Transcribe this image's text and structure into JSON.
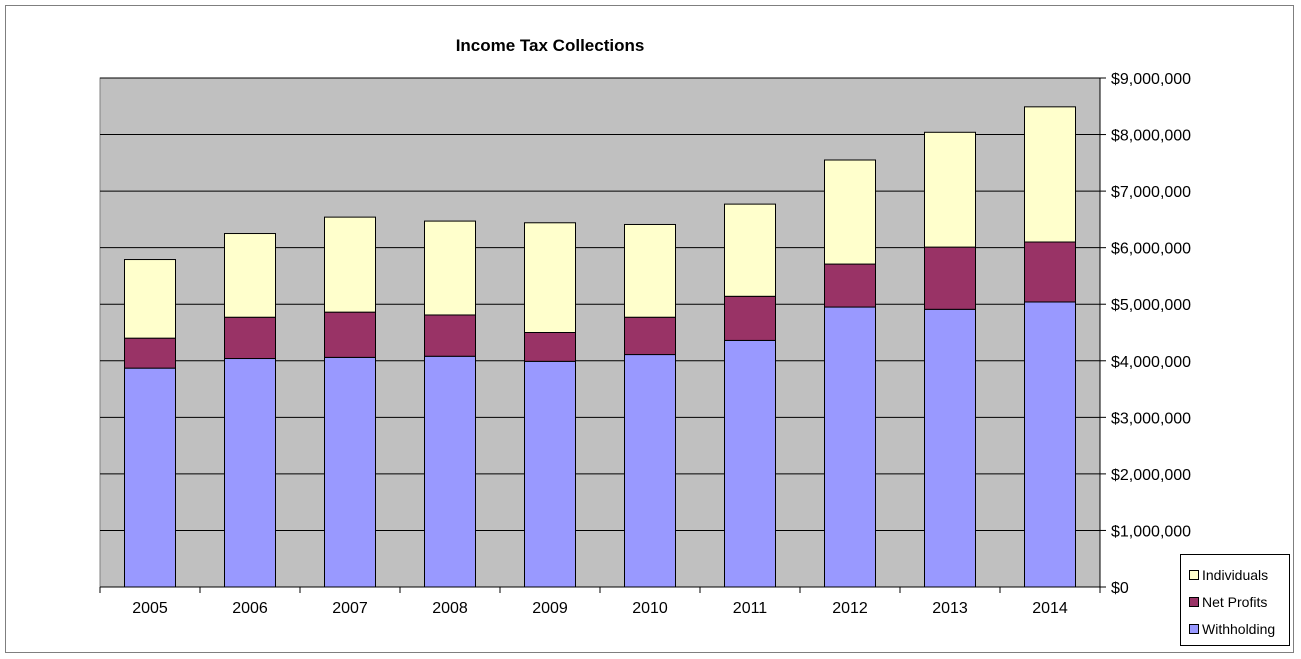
{
  "chart_data": {
    "type": "bar",
    "stacked": true,
    "title": "Income Tax Collections",
    "categories": [
      "2005",
      "2006",
      "2007",
      "2008",
      "2009",
      "2010",
      "2011",
      "2012",
      "2013",
      "2014"
    ],
    "series": [
      {
        "name": "Withholding",
        "color": "#9999ff",
        "values": [
          3870000,
          4040000,
          4060000,
          4080000,
          3990000,
          4110000,
          4360000,
          4950000,
          4910000,
          5040000
        ]
      },
      {
        "name": "Net Profits",
        "color": "#993366",
        "values": [
          530000,
          730000,
          800000,
          730000,
          510000,
          660000,
          780000,
          760000,
          1100000,
          1060000
        ]
      },
      {
        "name": "Individuals",
        "color": "#ffffcc",
        "values": [
          1390000,
          1480000,
          1680000,
          1660000,
          1940000,
          1640000,
          1630000,
          1840000,
          2030000,
          2390000
        ]
      }
    ],
    "ylim": [
      0,
      9000000
    ],
    "yticks": [
      0,
      1000000,
      2000000,
      3000000,
      4000000,
      5000000,
      6000000,
      7000000,
      8000000,
      9000000
    ],
    "ytick_labels": [
      "$0",
      "$1,000,000",
      "$2,000,000",
      "$3,000,000",
      "$4,000,000",
      "$5,000,000",
      "$6,000,000",
      "$7,000,000",
      "$8,000,000",
      "$9,000,000"
    ],
    "y_axis_side": "right",
    "grid": true,
    "plot_background": "#c0c0c0",
    "legend_position": "bottom-right",
    "legend_order": [
      "Individuals",
      "Net Profits",
      "Withholding"
    ]
  }
}
